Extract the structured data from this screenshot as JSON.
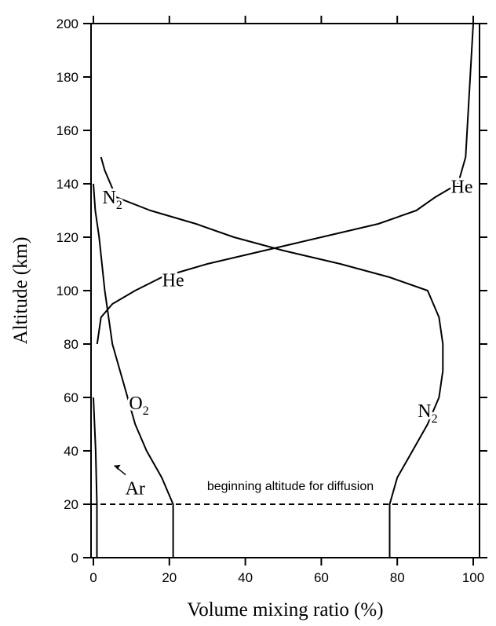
{
  "chart_data": {
    "type": "line",
    "title": "",
    "xlabel": "Volume  mixing  ratio  (%)",
    "ylabel": "Altitude  (km)",
    "xlim": [
      0,
      100
    ],
    "ylim": [
      0,
      200
    ],
    "xticks": [
      0,
      20,
      40,
      60,
      80,
      100
    ],
    "yticks": [
      0,
      20,
      40,
      60,
      80,
      100,
      120,
      140,
      160,
      180,
      200
    ],
    "grid": false,
    "series": [
      {
        "name": "N2",
        "color": "#000000",
        "points": [
          [
            78,
            0
          ],
          [
            78,
            20
          ],
          [
            80,
            30
          ],
          [
            84,
            40
          ],
          [
            88,
            50
          ],
          [
            91,
            60
          ],
          [
            92,
            70
          ],
          [
            92,
            80
          ],
          [
            91,
            90
          ],
          [
            88,
            100
          ],
          [
            78,
            105
          ],
          [
            65,
            110
          ],
          [
            50,
            115
          ],
          [
            37,
            120
          ],
          [
            27,
            125
          ],
          [
            15,
            130
          ],
          [
            6,
            135
          ],
          [
            3,
            145
          ],
          [
            2,
            150
          ]
        ]
      },
      {
        "name": "He",
        "color": "#000000",
        "points": [
          [
            1,
            80
          ],
          [
            2,
            90
          ],
          [
            5,
            95
          ],
          [
            11,
            100
          ],
          [
            18,
            105
          ],
          [
            30,
            110
          ],
          [
            45,
            115
          ],
          [
            60,
            120
          ],
          [
            75,
            125
          ],
          [
            85,
            130
          ],
          [
            90,
            135
          ],
          [
            96,
            140
          ],
          [
            98,
            150
          ],
          [
            100,
            200
          ]
        ]
      },
      {
        "name": "O2",
        "color": "#000000",
        "points": [
          [
            21,
            0
          ],
          [
            21,
            20
          ],
          [
            18,
            30
          ],
          [
            14,
            40
          ],
          [
            11,
            50
          ],
          [
            9,
            60
          ],
          [
            7,
            70
          ],
          [
            5,
            80
          ],
          [
            3,
            100
          ],
          [
            1.5,
            120
          ],
          [
            0.5,
            130
          ],
          [
            0,
            140
          ]
        ]
      },
      {
        "name": "Ar",
        "color": "#000000",
        "points": [
          [
            0.93,
            0
          ],
          [
            0.93,
            20
          ],
          [
            0.6,
            40
          ],
          [
            0,
            60
          ]
        ]
      }
    ],
    "curve_labels": [
      {
        "text": "N",
        "sub": "2",
        "x": 5,
        "y": 135
      },
      {
        "text": "He",
        "sub": "",
        "x": 97,
        "y": 139
      },
      {
        "text": "He",
        "sub": "",
        "x": 21,
        "y": 104
      },
      {
        "text": "O",
        "sub": "2",
        "x": 12,
        "y": 58
      },
      {
        "text": "N",
        "sub": "2",
        "x": 88,
        "y": 55
      },
      {
        "text": "Ar",
        "sub": "",
        "x": 11,
        "y": 26
      }
    ],
    "reference_line": {
      "y": 20,
      "style": "dashed"
    },
    "annotations": [
      {
        "text": "beginning  altitude  for diffusion",
        "x": 50,
        "y": 27
      }
    ]
  }
}
